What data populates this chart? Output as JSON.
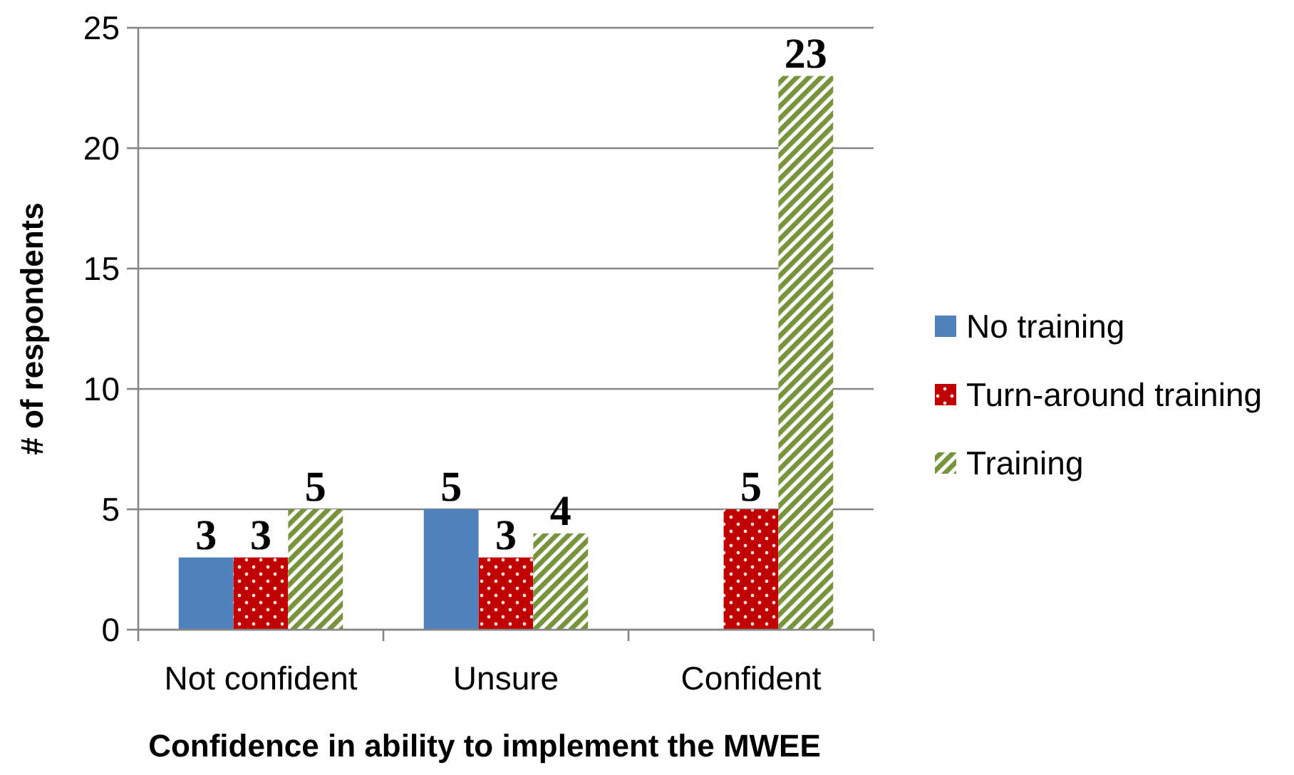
{
  "chart_data": {
    "type": "bar",
    "xlabel": "Confidence in ability to implement the MWEE",
    "ylabel": "# of respondents",
    "categories": [
      "Not confident",
      "Unsure",
      "Confident"
    ],
    "series": [
      {
        "name": "No training",
        "color": "#4f81bd",
        "values": [
          3,
          5,
          null
        ]
      },
      {
        "name": "Turn-around training",
        "color": "#c00000",
        "values": [
          3,
          3,
          5
        ]
      },
      {
        "name": "Training",
        "color": "#77933c",
        "values": [
          5,
          4,
          23
        ]
      }
    ],
    "ylim": [
      0,
      25
    ],
    "yticks": [
      0,
      5,
      10,
      15,
      20,
      25
    ],
    "grid": "y",
    "legend": "right",
    "data_labels": true
  }
}
